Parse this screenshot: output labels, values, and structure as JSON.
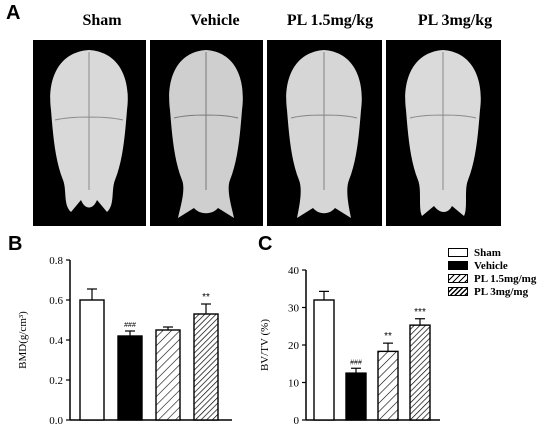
{
  "panel_a": {
    "letter": "A",
    "groups": [
      "Sham",
      "Vehicle",
      "PL 1.5mg/kg",
      "PL 3mg/kg"
    ]
  },
  "legend": {
    "items": [
      {
        "label": "Sham",
        "pattern": "white"
      },
      {
        "label": "Vehicle",
        "pattern": "black"
      },
      {
        "label": "PL 1.5mg/mg",
        "pattern": "hatch-sparse"
      },
      {
        "label": "PL 3mg/mg",
        "pattern": "hatch-dense"
      }
    ]
  },
  "colors": {
    "bar_outline": "#000000",
    "vehicle_fill": "#000000",
    "sham_fill": "#ffffff"
  },
  "chart_data": [
    {
      "panel": "B",
      "type": "bar",
      "categories": [
        "Sham",
        "Vehicle",
        "PL 1.5mg/mg",
        "PL 3mg/mg"
      ],
      "values": [
        0.6,
        0.42,
        0.45,
        0.53
      ],
      "errors": [
        0.055,
        0.025,
        0.015,
        0.05
      ],
      "annotations": [
        "",
        "###",
        "",
        "**"
      ],
      "ylabel": "BMD(g/cm³)",
      "ylim": [
        0,
        0.8
      ],
      "yticks": [
        "0.0",
        "0.2",
        "0.4",
        "0.6",
        "0.8"
      ]
    },
    {
      "panel": "C",
      "type": "bar",
      "categories": [
        "Sham",
        "Vehicle",
        "PL 1.5mg/mg",
        "PL 3mg/mg"
      ],
      "values": [
        32,
        12.5,
        18.3,
        25.3
      ],
      "errors": [
        2.3,
        1.3,
        2.2,
        1.7
      ],
      "annotations": [
        "",
        "###",
        "**",
        "***"
      ],
      "ylabel": "BV/TV (%)",
      "ylim": [
        0,
        40
      ],
      "yticks": [
        "0",
        "10",
        "20",
        "30",
        "40"
      ]
    }
  ]
}
